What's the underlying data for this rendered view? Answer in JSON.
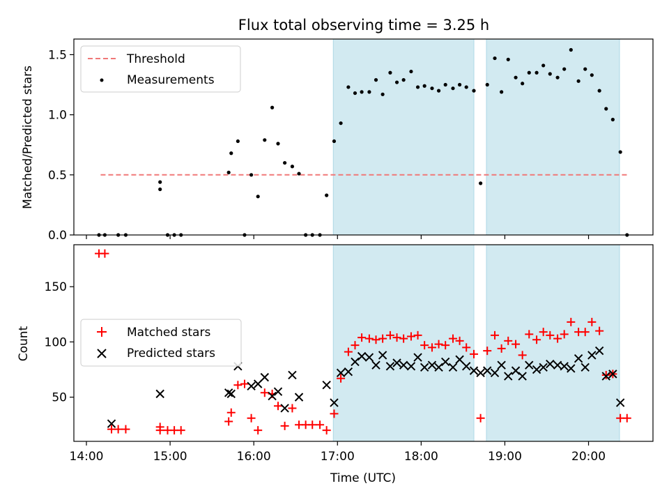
{
  "figure_title": "Flux total observing time = 3.25 h",
  "colors": {
    "threshold": "#f07878",
    "measurement": "#000000",
    "matched": "#ff0000",
    "predicted": "#000000",
    "shade": "#add8e6"
  },
  "chart_data": [
    {
      "type": "scatter",
      "ylabel": "Matched/Predicted stars",
      "xlim": [
        13.85,
        20.77
      ],
      "ylim": [
        0,
        1.63
      ],
      "yticks": [
        0.0,
        0.5,
        1.0,
        1.5
      ],
      "ytick_labels": [
        "0.0",
        "0.5",
        "1.0",
        "1.5"
      ],
      "legend_position": "upper-left",
      "shaded_spans": [
        [
          16.95,
          18.63
        ],
        [
          18.78,
          20.37
        ]
      ],
      "series": [
        {
          "name": "Threshold",
          "kind": "dashed-line",
          "x": [
            14.17,
            20.47
          ],
          "y": [
            0.5,
            0.5
          ]
        },
        {
          "name": "Measurements",
          "kind": "dot",
          "x": [
            14.15,
            14.22,
            14.38,
            14.47,
            14.88,
            14.88,
            14.97,
            15.05,
            15.13,
            15.7,
            15.73,
            15.81,
            15.89,
            15.97,
            16.05,
            16.13,
            16.22,
            16.29,
            16.37,
            16.46,
            16.54,
            16.62,
            16.7,
            16.79,
            16.87,
            16.96,
            17.04,
            17.13,
            17.21,
            17.29,
            17.38,
            17.46,
            17.54,
            17.63,
            17.71,
            17.79,
            17.88,
            17.96,
            18.04,
            18.13,
            18.21,
            18.29,
            18.38,
            18.46,
            18.54,
            18.63,
            18.71,
            18.79,
            18.88,
            18.96,
            19.04,
            19.13,
            19.21,
            19.29,
            19.38,
            19.46,
            19.54,
            19.63,
            19.71,
            19.79,
            19.88,
            19.96,
            20.04,
            20.13,
            20.21,
            20.29,
            20.38,
            20.46
          ],
          "y": [
            0.0,
            0.0,
            0.0,
            0.0,
            0.44,
            0.38,
            0.0,
            0.0,
            0.0,
            0.52,
            0.68,
            0.78,
            0.0,
            0.5,
            0.32,
            0.79,
            1.06,
            0.76,
            0.6,
            0.57,
            0.51,
            0.0,
            0.0,
            0.0,
            0.33,
            0.78,
            0.93,
            1.23,
            1.18,
            1.19,
            1.19,
            1.29,
            1.17,
            1.35,
            1.27,
            1.29,
            1.36,
            1.23,
            1.24,
            1.22,
            1.2,
            1.25,
            1.22,
            1.25,
            1.23,
            1.2,
            0.43,
            1.25,
            1.47,
            1.19,
            1.46,
            1.31,
            1.26,
            1.35,
            1.35,
            1.41,
            1.34,
            1.31,
            1.38,
            1.54,
            1.28,
            1.38,
            1.33,
            1.2,
            1.05,
            0.96,
            0.69,
            0.0
          ]
        }
      ]
    },
    {
      "type": "scatter",
      "xlabel": "Time (UTC)",
      "ylabel": "Count",
      "xlim": [
        13.85,
        20.77
      ],
      "ylim": [
        10,
        188
      ],
      "yticks": [
        50,
        100,
        150
      ],
      "ytick_labels": [
        "50",
        "100",
        "150"
      ],
      "xticks": [
        14,
        15,
        16,
        17,
        18,
        19,
        20
      ],
      "xtick_labels": [
        "14:00",
        "15:00",
        "16:00",
        "17:00",
        "18:00",
        "19:00",
        "20:00"
      ],
      "legend_position": "center-left",
      "shaded_spans": [
        [
          16.95,
          18.63
        ],
        [
          18.78,
          20.37
        ]
      ],
      "series": [
        {
          "name": "Matched stars",
          "kind": "plus",
          "x": [
            14.15,
            14.22,
            14.3,
            14.38,
            14.47,
            14.88,
            14.88,
            14.97,
            15.05,
            15.13,
            15.7,
            15.73,
            15.81,
            15.89,
            15.97,
            16.05,
            16.13,
            16.22,
            16.29,
            16.37,
            16.46,
            16.54,
            16.62,
            16.7,
            16.79,
            16.87,
            16.96,
            17.04,
            17.13,
            17.21,
            17.29,
            17.38,
            17.46,
            17.54,
            17.63,
            17.71,
            17.79,
            17.88,
            17.96,
            18.04,
            18.13,
            18.21,
            18.29,
            18.38,
            18.46,
            18.54,
            18.63,
            18.71,
            18.79,
            18.88,
            18.96,
            19.04,
            19.13,
            19.21,
            19.29,
            19.38,
            19.46,
            19.54,
            19.63,
            19.71,
            19.79,
            19.88,
            19.96,
            20.04,
            20.13,
            20.21,
            20.29,
            20.38,
            20.46
          ],
          "y": [
            180,
            180,
            21,
            21,
            21,
            20,
            23,
            20,
            20,
            20,
            28,
            36,
            61,
            62,
            31,
            20,
            54,
            53,
            42,
            24,
            40,
            25,
            25,
            25,
            25,
            20,
            35,
            67,
            91,
            97,
            104,
            103,
            102,
            103,
            106,
            104,
            103,
            105,
            106,
            97,
            95,
            98,
            97,
            103,
            101,
            95,
            89,
            31,
            92,
            106,
            94,
            101,
            98,
            88,
            107,
            102,
            109,
            106,
            103,
            107,
            118,
            109,
            109,
            118,
            110,
            70,
            71,
            31,
            31
          ]
        },
        {
          "name": "Predicted stars",
          "kind": "cross",
          "x": [
            14.3,
            14.88,
            15.7,
            15.73,
            15.81,
            15.97,
            16.05,
            16.13,
            16.22,
            16.29,
            16.37,
            16.46,
            16.54,
            16.87,
            16.96,
            17.04,
            17.13,
            17.21,
            17.29,
            17.38,
            17.46,
            17.54,
            17.63,
            17.71,
            17.79,
            17.88,
            17.96,
            18.04,
            18.13,
            18.21,
            18.29,
            18.38,
            18.46,
            18.54,
            18.63,
            18.71,
            18.79,
            18.88,
            18.96,
            19.04,
            19.13,
            19.21,
            19.29,
            19.38,
            19.46,
            19.54,
            19.63,
            19.71,
            19.79,
            19.88,
            19.96,
            20.04,
            20.13,
            20.21,
            20.29,
            20.38
          ],
          "y": [
            26,
            53,
            54,
            53,
            78,
            60,
            62,
            68,
            51,
            55,
            40,
            70,
            50,
            61,
            45,
            72,
            73,
            82,
            87,
            86,
            79,
            88,
            78,
            81,
            79,
            78,
            86,
            77,
            79,
            77,
            82,
            77,
            84,
            78,
            74,
            72,
            74,
            72,
            79,
            69,
            74,
            69,
            79,
            75,
            77,
            80,
            79,
            78,
            76,
            85,
            77,
            88,
            92,
            69,
            71,
            45
          ]
        }
      ]
    }
  ]
}
